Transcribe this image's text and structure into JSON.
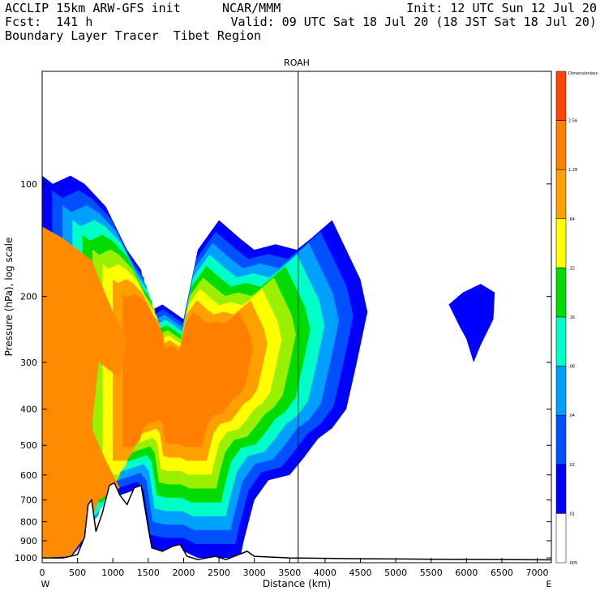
{
  "header": {
    "line1_left": "ACCLIP 15km ARW-GFS init",
    "line1_mid": "NCAR/MMM",
    "line1_right": "Init: 12 UTC Sun 12 Jul 20",
    "line2_left": "Fcst:  141 h",
    "line2_right": "Valid: 09 UTC Sat 18 Jul 20 (18 JST Sat 18 Jul 20)",
    "line3_left": "Boundary Layer Tracer  Tibet Region"
  },
  "chart_data": {
    "type": "heatmap",
    "title": "ROAH",
    "xlabel": "Distance (km)",
    "ylabel": "Pressure (hPa), log scale",
    "x_ticks": [
      0,
      500,
      1000,
      1500,
      2000,
      2500,
      3000,
      3500,
      4000,
      4500,
      5000,
      5500,
      6000,
      6500,
      7000
    ],
    "y_ticks": [
      100,
      200,
      300,
      400,
      500,
      600,
      700,
      800,
      900,
      1000
    ],
    "y_scale": "log",
    "xlim": [
      0,
      7200
    ],
    "ylim": [
      1030,
      50
    ],
    "x_end_labels": [
      "W",
      "E"
    ],
    "station_line_x": 3620,
    "colorbar": {
      "labels": [
        "Dimensionless",
        "2.56",
        "1.28",
        ".64",
        ".32",
        ".16",
        ".08",
        ".04",
        ".02",
        ".01",
        ".005"
      ],
      "colors": [
        "#ff4500",
        "#ff7f00",
        "#ff9f00",
        "#ffff00",
        "#00dc00",
        "#00ffc8",
        "#00a0ff",
        "#0050ff",
        "#0000ff",
        "#ffffff"
      ]
    },
    "level_colors": [
      "#0000ff",
      "#0050ff",
      "#00a0ff",
      "#00ffc8",
      "#00dc00",
      "#9af000",
      "#ffff00",
      "#ff9f00",
      "#ff7f00"
    ],
    "terrain_profile": [
      [
        0,
        1000
      ],
      [
        300,
        1000
      ],
      [
        500,
        980
      ],
      [
        600,
        880
      ],
      [
        650,
        720
      ],
      [
        700,
        700
      ],
      [
        760,
        850
      ],
      [
        850,
        760
      ],
      [
        950,
        640
      ],
      [
        1020,
        630
      ],
      [
        1100,
        680
      ],
      [
        1200,
        720
      ],
      [
        1300,
        650
      ],
      [
        1400,
        640
      ],
      [
        1500,
        830
      ],
      [
        1550,
        940
      ],
      [
        1700,
        960
      ],
      [
        1850,
        930
      ],
      [
        1950,
        920
      ],
      [
        2050,
        990
      ],
      [
        2200,
        1010
      ],
      [
        2450,
        990
      ],
      [
        2600,
        1010
      ],
      [
        2900,
        960
      ],
      [
        3000,
        990
      ],
      [
        3500,
        1000
      ],
      [
        4500,
        1005
      ],
      [
        5500,
        1008
      ],
      [
        6500,
        1010
      ],
      [
        7200,
        1012
      ]
    ]
  }
}
